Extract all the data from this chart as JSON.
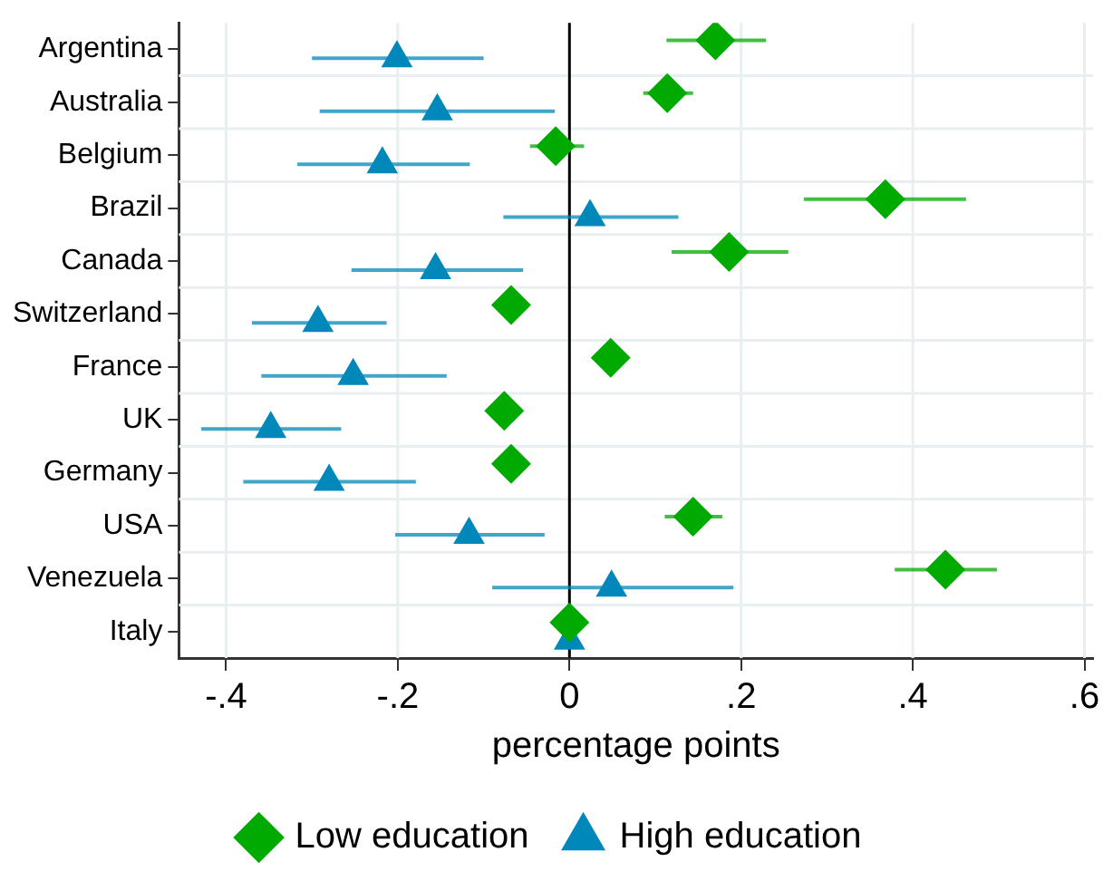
{
  "chart_data": {
    "type": "scatter",
    "orientation": "horizontal",
    "xlabel": "percentage points",
    "categories": [
      "Argentina",
      "Australia",
      "Belgium",
      "Brazil",
      "Canada",
      "Switzerland",
      "France",
      "UK",
      "Germany",
      "USA",
      "Venezuela",
      "Italy"
    ],
    "series": [
      {
        "name": "Low education",
        "color": "#00aa00",
        "marker": "diamond",
        "values": [
          0.17,
          0.114,
          -0.016,
          0.368,
          0.186,
          -0.068,
          0.048,
          -0.076,
          -0.068,
          0.144,
          0.438,
          0
        ],
        "errors": [
          [
            0.113,
            0.229
          ],
          [
            0.086,
            0.144
          ],
          [
            -0.046,
            0.017
          ],
          [
            0.273,
            0.462
          ],
          [
            0.119,
            0.255
          ],
          null,
          null,
          null,
          null,
          [
            0.111,
            0.178
          ],
          [
            0.379,
            0.498
          ],
          null
        ]
      },
      {
        "name": "High education",
        "color": "#0088bb",
        "marker": "triangle",
        "values": [
          -0.201,
          -0.154,
          -0.218,
          0.024,
          -0.156,
          -0.293,
          -0.252,
          -0.348,
          -0.28,
          -0.117,
          0.049,
          0
        ],
        "errors": [
          [
            -0.3,
            -0.1
          ],
          [
            -0.291,
            -0.017
          ],
          [
            -0.317,
            -0.116
          ],
          [
            -0.077,
            0.127
          ],
          [
            -0.254,
            -0.054
          ],
          [
            -0.37,
            -0.213
          ],
          [
            -0.359,
            -0.143
          ],
          [
            -0.429,
            -0.266
          ],
          [
            -0.38,
            -0.179
          ],
          [
            -0.203,
            -0.029
          ],
          [
            -0.09,
            0.191
          ],
          null
        ]
      }
    ],
    "xlim": [
      -0.455,
      0.61
    ],
    "xticks": [
      {
        "value": -0.4,
        "label": "-.4"
      },
      {
        "value": -0.2,
        "label": "-.2"
      },
      0,
      {
        "value": 0.2,
        "label": ".2"
      },
      {
        "value": 0.4,
        "label": ".4"
      },
      {
        "value": 0.6,
        "label": ".6"
      }
    ],
    "ref_lines": [
      {
        "axis": "x",
        "value": 0,
        "color": "#000000"
      }
    ],
    "grid": true,
    "legend": "bottom"
  }
}
